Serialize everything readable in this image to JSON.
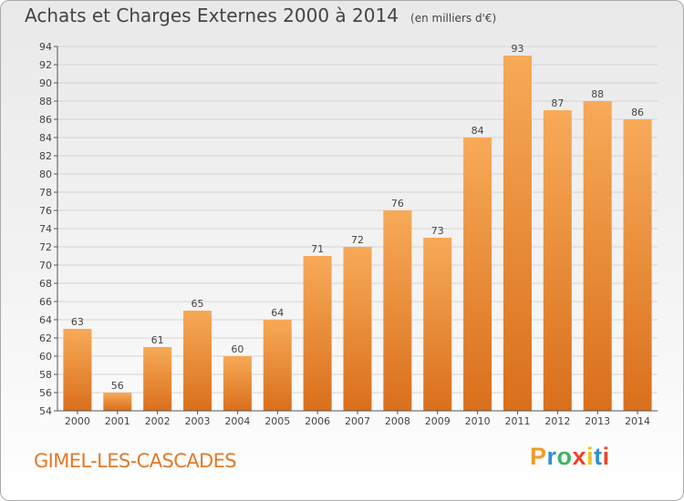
{
  "title": {
    "main": "Achats et Charges Externes 2000 à 2014",
    "unit": "(en milliers d'€)"
  },
  "commune": "GIMEL-LES-CASCADES",
  "logo": {
    "letters": [
      "P",
      "r",
      "o",
      "x",
      "i",
      "t",
      "i"
    ],
    "colors": [
      "#f29a28",
      "#2f8fd0",
      "#3fb36b",
      "#e8452c",
      "#f2c21b",
      "#2f8fd0",
      "#e8452c"
    ]
  },
  "colors": {
    "bar_light": "#f7aa58",
    "bar_dark": "#d96f1c",
    "grid": "#d4d4d4",
    "axis": "#555555",
    "text": "#444444"
  },
  "chart_data": {
    "type": "bar",
    "title": "Achats et Charges Externes 2000 à 2014",
    "categories": [
      "2000",
      "2001",
      "2002",
      "2003",
      "2004",
      "2005",
      "2006",
      "2007",
      "2008",
      "2009",
      "2010",
      "2011",
      "2012",
      "2013",
      "2014"
    ],
    "values": [
      63,
      56,
      61,
      65,
      60,
      64,
      71,
      72,
      76,
      73,
      84,
      93,
      87,
      88,
      86
    ],
    "ylim": [
      54,
      94
    ],
    "yticks": [
      54,
      56,
      58,
      60,
      62,
      64,
      66,
      68,
      70,
      72,
      74,
      76,
      78,
      80,
      82,
      84,
      86,
      88,
      90,
      92,
      94
    ],
    "grid": true,
    "xlabel": "",
    "ylabel": ""
  }
}
